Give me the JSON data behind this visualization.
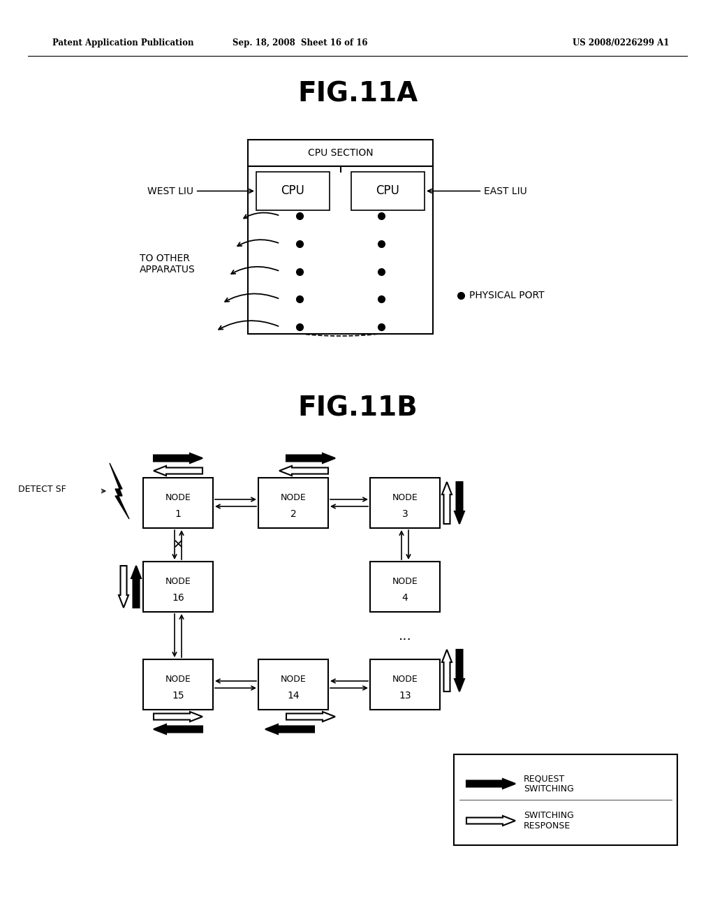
{
  "bg_color": "#ffffff",
  "header_text": "Patent Application Publication",
  "header_date": "Sep. 18, 2008  Sheet 16 of 16",
  "header_patent": "US 2008/0226299 A1",
  "fig11a_title": "FIG.11A",
  "fig11b_title": "FIG.11B",
  "cpu_section_label": "CPU SECTION",
  "west_liu_label": "WEST LIU",
  "east_liu_label": "EAST LIU",
  "cpu_label": "CPU",
  "to_other_label": "TO OTHER\nAPPARATUS",
  "physical_port_label": "PHYSICAL PORT",
  "detect_sf_label": "DETECT SF",
  "request_switching_label": "REQUEST\nSWITCHING",
  "switching_response_label": "SWITCHING\nRESPONSE"
}
